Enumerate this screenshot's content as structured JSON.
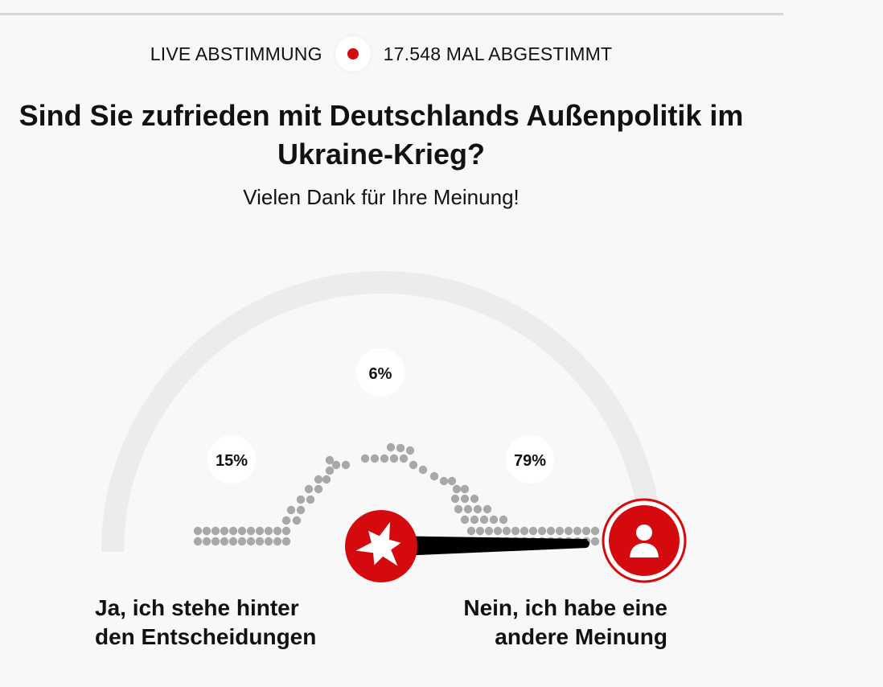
{
  "header": {
    "live_label": "LIVE ABSTIMMUNG",
    "vote_count_text": "17.548 MAL ABGESTIMMT",
    "live_indicator_color": "#d50a0f"
  },
  "poll": {
    "question": "Sind Sie zufrieden mit Deutschlands Außenpolitik im Ukraine-Krieg?",
    "thanks_message": "Vielen Dank für Ihre Meinung!",
    "options": [
      {
        "label_line1": "Ja, ich stehe hinter",
        "label_line2": "den Entscheidungen"
      },
      {
        "label_line1": "Nein, ich habe eine",
        "label_line2": "andere Meinung"
      }
    ],
    "results": [
      {
        "label": "15%",
        "value": 15
      },
      {
        "label": "6%",
        "value": 6
      },
      {
        "label": "79%",
        "value": 79
      }
    ],
    "needle_value": 79,
    "colors": {
      "accent": "#d50a0f",
      "track": "#ececec",
      "dots": "#a8a8a8"
    },
    "icons": {
      "left": "stern-logo-icon",
      "right": "user-avatar-icon"
    }
  }
}
